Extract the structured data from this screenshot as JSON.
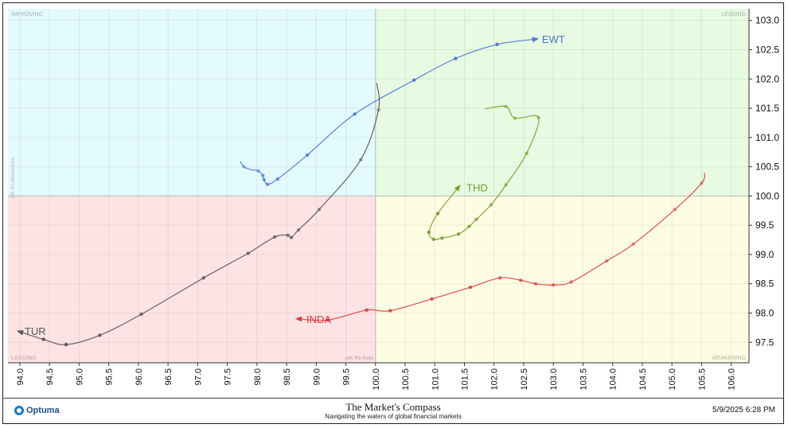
{
  "chart_data": {
    "type": "scatter",
    "subtype": "relative-rotation-graph",
    "xlim": [
      93.8,
      106.3
    ],
    "ylim": [
      97.15,
      103.2
    ],
    "x_ticks": [
      "94.0",
      "94.5",
      "95.0",
      "95.5",
      "96.0",
      "96.5",
      "97.0",
      "97.5",
      "98.0",
      "98.5",
      "99.0",
      "99.5",
      "100.0",
      "100.5",
      "101.0",
      "101.5",
      "102.0",
      "102.5",
      "103.0",
      "103.5",
      "104.0",
      "104.5",
      "105.0",
      "105.5",
      "106.0"
    ],
    "y_ticks": [
      "97.5",
      "98.0",
      "98.5",
      "99.0",
      "99.5",
      "100.0",
      "100.5",
      "101.0",
      "101.5",
      "102.0",
      "102.5",
      "103.0"
    ],
    "center": [
      100,
      100
    ],
    "quadrants": {
      "improving": "IMPROVING",
      "leading": "LEADING",
      "lagging": "LAGGING",
      "weakening": "WEAKENING"
    },
    "axis_labels": {
      "x": "JdK RS-Ratio",
      "y": "JdK RS-Momentum"
    },
    "colors": {
      "improving": "#e3fafe",
      "leading": "#e6fbe2",
      "lagging": "#fde3e4",
      "weakening": "#fdfde3"
    },
    "series": [
      {
        "name": "EWT",
        "color": "#4a72d8",
        "points": [
          [
            97.72,
            100.59
          ],
          [
            97.78,
            100.5
          ],
          [
            97.9,
            100.45
          ],
          [
            98.02,
            100.43
          ],
          [
            98.1,
            100.35
          ],
          [
            98.12,
            100.28
          ],
          [
            98.18,
            100.2
          ],
          [
            98.35,
            100.29
          ],
          [
            98.85,
            100.7
          ],
          [
            99.65,
            101.4
          ],
          [
            100.65,
            101.98
          ],
          [
            101.35,
            102.35
          ],
          [
            102.05,
            102.59
          ],
          [
            102.7,
            102.68
          ]
        ],
        "dots": [
          1,
          3,
          4,
          5,
          6,
          7,
          8,
          9,
          10,
          11,
          12
        ]
      },
      {
        "name": "THD",
        "color": "#7a9a2a",
        "points": [
          [
            101.85,
            101.49
          ],
          [
            102.2,
            101.53
          ],
          [
            102.35,
            101.33
          ],
          [
            102.75,
            101.34
          ],
          [
            102.55,
            100.73
          ],
          [
            102.2,
            100.19
          ],
          [
            101.95,
            99.85
          ],
          [
            101.7,
            99.6
          ],
          [
            101.58,
            99.48
          ],
          [
            101.4,
            99.35
          ],
          [
            101.12,
            99.28
          ],
          [
            100.98,
            99.26
          ],
          [
            100.9,
            99.38
          ],
          [
            101.05,
            99.7
          ],
          [
            101.4,
            100.15
          ]
        ],
        "dots": [
          1,
          2,
          3,
          4,
          5,
          6,
          7,
          8,
          9,
          10,
          11,
          12,
          13
        ]
      },
      {
        "name": "TUR",
        "color": "#555555",
        "points": [
          [
            100.02,
            101.93
          ],
          [
            100.05,
            101.47
          ],
          [
            99.75,
            100.62
          ],
          [
            99.05,
            99.77
          ],
          [
            98.7,
            99.42
          ],
          [
            98.58,
            99.29
          ],
          [
            98.52,
            99.33
          ],
          [
            98.3,
            99.3
          ],
          [
            97.85,
            99.02
          ],
          [
            97.1,
            98.6
          ],
          [
            96.05,
            97.98
          ],
          [
            95.35,
            97.62
          ],
          [
            94.78,
            97.46
          ],
          [
            94.4,
            97.55
          ],
          [
            94.0,
            97.68
          ]
        ],
        "dots": [
          1,
          2,
          3,
          4,
          5,
          6,
          7,
          8,
          9,
          10,
          11,
          12,
          13
        ]
      },
      {
        "name": "INDA",
        "color": "#e03a3a",
        "points": [
          [
            105.55,
            100.4
          ],
          [
            105.5,
            100.22
          ],
          [
            105.05,
            99.77
          ],
          [
            104.35,
            99.18
          ],
          [
            103.9,
            98.89
          ],
          [
            103.3,
            98.53
          ],
          [
            103.0,
            98.48
          ],
          [
            102.7,
            98.5
          ],
          [
            102.45,
            98.56
          ],
          [
            102.1,
            98.6
          ],
          [
            101.6,
            98.44
          ],
          [
            100.95,
            98.24
          ],
          [
            100.25,
            98.04
          ],
          [
            99.85,
            98.05
          ],
          [
            99.2,
            97.88
          ],
          [
            98.7,
            97.9
          ]
        ],
        "dots": [
          1,
          2,
          3,
          4,
          5,
          6,
          7,
          8,
          9,
          10,
          11,
          12,
          13,
          14
        ]
      }
    ]
  },
  "footer": {
    "logo_text": "Optuma",
    "brand_title": "The Market's Compass",
    "brand_tagline": "Navigating the waters of global financial markets",
    "timestamp": "5/9/2025 6:28 PM"
  }
}
